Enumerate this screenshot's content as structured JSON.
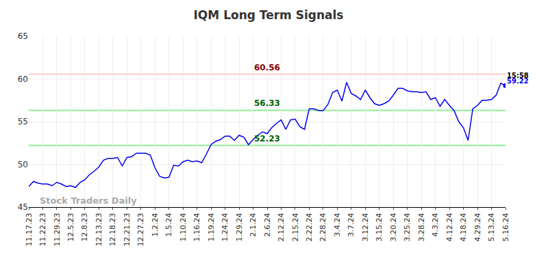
{
  "chart_data": {
    "type": "line",
    "title": "IQM Long Term Signals",
    "categories": [
      "11.17.23",
      null,
      null,
      "11.22.23",
      null,
      null,
      "11.29.23",
      null,
      null,
      "12.5.23",
      null,
      null,
      "12.8.23",
      null,
      null,
      "12.13.23",
      null,
      null,
      "12.18.23",
      null,
      null,
      "12.21.23",
      null,
      null,
      "12.27.23",
      null,
      null,
      "1.2.24",
      null,
      null,
      "1.5.24",
      null,
      null,
      "1.10.24",
      null,
      null,
      "1.16.24",
      null,
      null,
      "1.19.24",
      null,
      null,
      "1.24.24",
      null,
      null,
      "1.29.24",
      null,
      null,
      "2.1.24",
      null,
      null,
      "2.6.24",
      null,
      null,
      "2.12.24",
      null,
      null,
      "2.15.24",
      null,
      null,
      "2.22.24",
      null,
      null,
      "2.28.24",
      null,
      null,
      "3.4.24",
      null,
      null,
      "3.7.24",
      null,
      null,
      "3.12.24",
      null,
      null,
      "3.15.24",
      null,
      null,
      "3.20.24",
      null,
      null,
      "3.25.24",
      null,
      null,
      "3.28.24",
      null,
      null,
      "4.3.24",
      null,
      null,
      "4.12.24",
      null,
      null,
      "4.18.24",
      null,
      null,
      "4.29.24",
      null,
      null,
      "5.13.24",
      null,
      null,
      "5.16.24"
    ],
    "values": [
      47.4,
      48.0,
      47.8,
      47.7,
      47.7,
      47.5,
      47.9,
      47.7,
      47.4,
      47.5,
      47.3,
      47.9,
      48.2,
      48.8,
      49.2,
      49.7,
      50.5,
      50.7,
      50.7,
      50.8,
      49.8,
      50.8,
      50.9,
      51.3,
      51.3,
      51.3,
      51.1,
      49.6,
      48.6,
      48.4,
      48.5,
      49.9,
      49.8,
      50.3,
      50.5,
      50.3,
      50.4,
      50.2,
      51.2,
      52.3,
      52.7,
      52.9,
      53.3,
      53.3,
      52.8,
      53.4,
      53.2,
      52.3,
      52.9,
      53.4,
      53.8,
      53.6,
      54.3,
      54.8,
      55.2,
      54.1,
      55.2,
      55.3,
      54.4,
      54.1,
      56.5,
      56.5,
      56.3,
      56.3,
      57.0,
      58.4,
      58.7,
      57.4,
      59.6,
      58.3,
      58.0,
      57.6,
      58.7,
      57.8,
      57.1,
      56.9,
      57.1,
      57.4,
      58.1,
      58.9,
      58.9,
      58.6,
      58.5,
      58.5,
      58.4,
      58.5,
      57.6,
      57.8,
      56.8,
      57.6,
      56.9,
      56.3,
      55.0,
      54.3,
      52.8,
      56.5,
      56.9,
      57.5,
      57.5,
      57.6,
      58.1,
      59.5,
      59.22
    ],
    "color": "#0000ee",
    "ylim": [
      45,
      65
    ],
    "yticks": [
      45,
      50,
      55,
      60,
      65
    ],
    "grid": true,
    "hlines": [
      {
        "value": 60.56,
        "color": "#ffc8c8",
        "label_color": "#8b0000"
      },
      {
        "value": 56.33,
        "color": "#90ee90",
        "label_color": "#006400"
      },
      {
        "value": 52.23,
        "color": "#90ee90",
        "label_color": "#006400"
      }
    ],
    "time_label": "15:58",
    "watermark": "Stock Traders Daily"
  }
}
